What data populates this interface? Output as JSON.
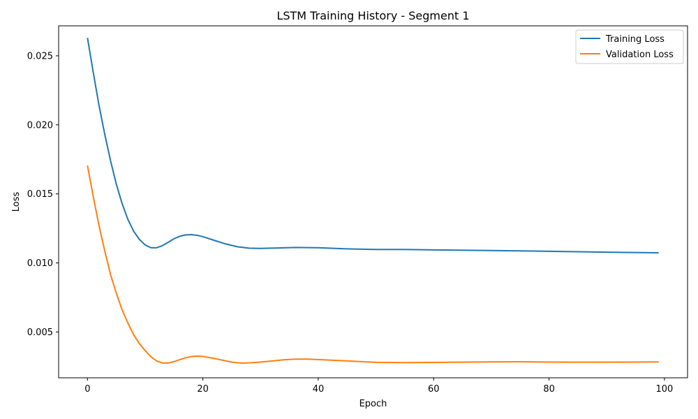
{
  "chart_data": {
    "type": "line",
    "title": "LSTM Training History - Segment 1",
    "xlabel": "Epoch",
    "ylabel": "Loss",
    "xlim": [
      -5,
      104
    ],
    "ylim": [
      0.00168,
      0.02717
    ],
    "xticks": [
      0,
      20,
      40,
      60,
      80,
      100
    ],
    "xtick_labels": [
      "0",
      "20",
      "40",
      "60",
      "80",
      "100"
    ],
    "yticks": [
      0.005,
      0.01,
      0.015,
      0.02,
      0.025
    ],
    "ytick_labels": [
      "0.005",
      "0.010",
      "0.015",
      "0.020",
      "0.025"
    ],
    "grid": false,
    "legend_position": "top-right",
    "series": [
      {
        "name": "Training Loss",
        "color": "#1f77b4",
        "points": [
          [
            0,
            0.0263
          ],
          [
            1,
            0.0238
          ],
          [
            2,
            0.0214
          ],
          [
            3,
            0.0193
          ],
          [
            4,
            0.0174
          ],
          [
            5,
            0.0157
          ],
          [
            6,
            0.0143
          ],
          [
            7,
            0.01315
          ],
          [
            8,
            0.0123
          ],
          [
            9,
            0.0117
          ],
          [
            10,
            0.0113
          ],
          [
            11,
            0.0111
          ],
          [
            12,
            0.0111
          ],
          [
            13,
            0.01125
          ],
          [
            14,
            0.0115
          ],
          [
            15,
            0.01175
          ],
          [
            16,
            0.01193
          ],
          [
            17,
            0.01203
          ],
          [
            18,
            0.01205
          ],
          [
            19,
            0.012
          ],
          [
            20,
            0.0119
          ],
          [
            22,
            0.01163
          ],
          [
            24,
            0.01137
          ],
          [
            26,
            0.01117
          ],
          [
            28,
            0.01107
          ],
          [
            30,
            0.01105
          ],
          [
            33,
            0.01108
          ],
          [
            36,
            0.01112
          ],
          [
            40,
            0.0111
          ],
          [
            45,
            0.01102
          ],
          [
            50,
            0.01097
          ],
          [
            55,
            0.01097
          ],
          [
            60,
            0.01094
          ],
          [
            70,
            0.0109
          ],
          [
            80,
            0.01084
          ],
          [
            90,
            0.01078
          ],
          [
            99,
            0.01073
          ]
        ]
      },
      {
        "name": "Validation Loss",
        "color": "#ff7f0e",
        "points": [
          [
            0,
            0.01705
          ],
          [
            1,
            0.0148
          ],
          [
            2,
            0.0127
          ],
          [
            3,
            0.01085
          ],
          [
            4,
            0.00915
          ],
          [
            5,
            0.0078
          ],
          [
            6,
            0.0066
          ],
          [
            7,
            0.00565
          ],
          [
            8,
            0.0048
          ],
          [
            9,
            0.00415
          ],
          [
            10,
            0.00365
          ],
          [
            11,
            0.0032
          ],
          [
            12,
            0.0029
          ],
          [
            13,
            0.00275
          ],
          [
            14,
            0.00275
          ],
          [
            15,
            0.00285
          ],
          [
            16,
            0.003
          ],
          [
            17,
            0.00313
          ],
          [
            18,
            0.00322
          ],
          [
            19,
            0.00325
          ],
          [
            20,
            0.00323
          ],
          [
            22,
            0.00308
          ],
          [
            24,
            0.0029
          ],
          [
            25,
            0.00282
          ],
          [
            26,
            0.00277
          ],
          [
            27,
            0.00275
          ],
          [
            28,
            0.00276
          ],
          [
            30,
            0.00282
          ],
          [
            32,
            0.0029
          ],
          [
            34,
            0.00298
          ],
          [
            36,
            0.00303
          ],
          [
            38,
            0.00303
          ],
          [
            40,
            0.003
          ],
          [
            45,
            0.0029
          ],
          [
            50,
            0.0028
          ],
          [
            55,
            0.00278
          ],
          [
            60,
            0.00279
          ],
          [
            65,
            0.00281
          ],
          [
            70,
            0.00283
          ],
          [
            75,
            0.00284
          ],
          [
            80,
            0.00282
          ],
          [
            85,
            0.00281
          ],
          [
            90,
            0.00281
          ],
          [
            95,
            0.00282
          ],
          [
            99,
            0.00283
          ]
        ]
      }
    ]
  }
}
